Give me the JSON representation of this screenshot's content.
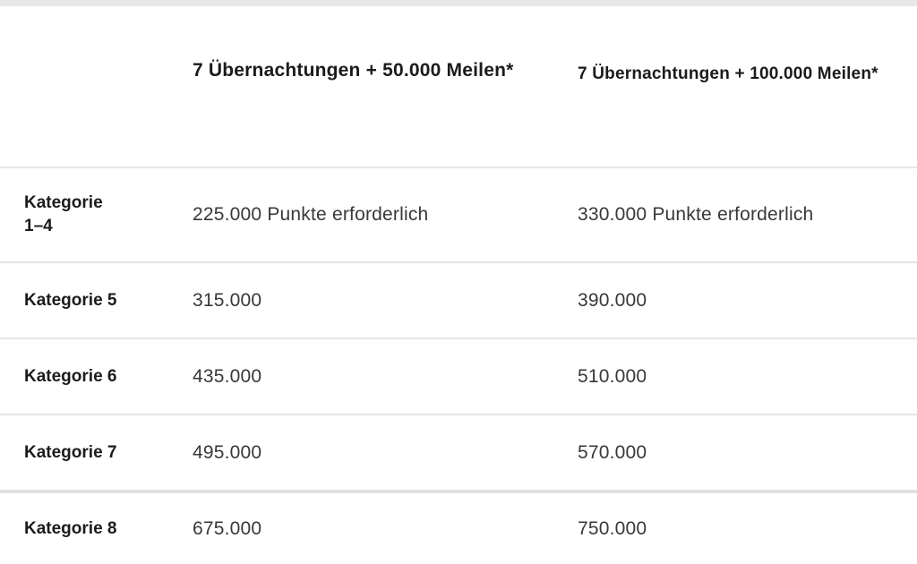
{
  "table": {
    "columns": [
      {
        "label": "7 Übernachtungen + 50.000 Meilen*"
      },
      {
        "label": "7 Übernachtungen + 100.000 Meilen*"
      }
    ],
    "rows": [
      {
        "category": "Kategorie 1–4",
        "value_50k": "225.000 Punkte erforderlich",
        "value_100k": "330.000 Punkte erforderlich"
      },
      {
        "category": "Kategorie 5",
        "value_50k": "315.000",
        "value_100k": "390.000"
      },
      {
        "category": "Kategorie 6",
        "value_50k": "435.000",
        "value_100k": "510.000"
      },
      {
        "category": "Kategorie 7",
        "value_50k": "495.000",
        "value_100k": "570.000"
      },
      {
        "category": "Kategorie 8",
        "value_50k": "675.000",
        "value_100k": "750.000"
      }
    ]
  },
  "colors": {
    "top_bar": "#e8e8e8",
    "divider": "#e6e6e6",
    "divider_thick": "#e0e0e0",
    "heading_text": "#1b1b1b",
    "value_text": "#383838"
  },
  "chart_data": {
    "type": "table",
    "columns": [
      "",
      "7 Übernachtungen + 50.000 Meilen*",
      "7 Übernachtungen + 100.000 Meilen*"
    ],
    "rows": [
      [
        "Kategorie 1–4",
        "225.000 Punkte erforderlich",
        "330.000 Punkte erforderlich"
      ],
      [
        "Kategorie 5",
        "315.000",
        "390.000"
      ],
      [
        "Kategorie 6",
        "435.000",
        "510.000"
      ],
      [
        "Kategorie 7",
        "495.000",
        "570.000"
      ],
      [
        "Kategorie 8",
        "675.000",
        "750.000"
      ]
    ]
  }
}
